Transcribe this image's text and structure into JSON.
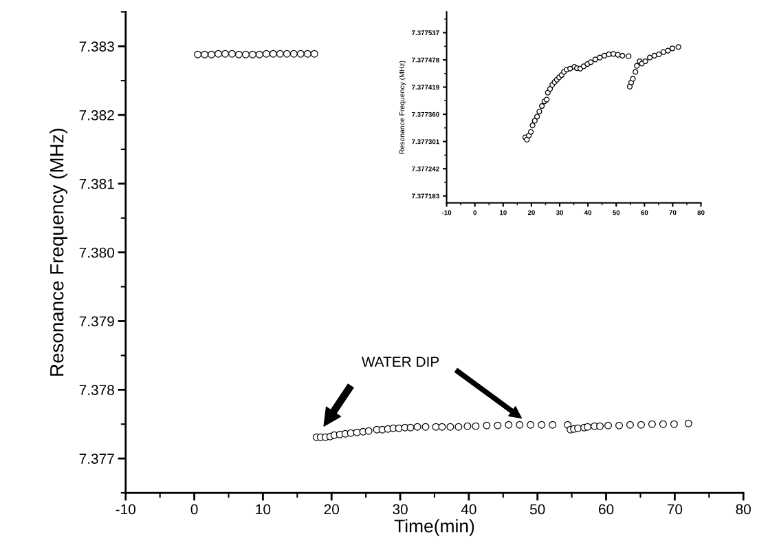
{
  "chart_data": [
    {
      "type": "scatter",
      "xlabel": "Time(min)",
      "ylabel": "Resonance Frequency (MHz)",
      "marker": "circle",
      "grid": false,
      "xlim": [
        -10,
        80
      ],
      "xticks": [
        -10,
        0,
        10,
        20,
        30,
        40,
        50,
        60,
        70,
        80
      ],
      "ylim": [
        7.3765,
        7.3835
      ],
      "yticks": [
        7.377,
        7.378,
        7.379,
        {
          "value": 7.38,
          "label": "7.380"
        },
        7.381,
        7.382,
        7.383
      ],
      "annotations": [
        "WATER DIP"
      ],
      "series": [
        {
          "color": "#000000",
          "x": [
            0.5,
            1.5,
            2.5,
            3.5,
            4.5,
            5.5,
            6.5,
            7.5,
            8.5,
            9.5,
            10.5,
            11.5,
            12.5,
            13.5,
            14.5,
            15.5,
            16.5,
            17.5
          ],
          "values": [
            7.38288,
            7.38288,
            7.38288,
            7.38289,
            7.38289,
            7.38289,
            7.38288,
            7.38288,
            7.38288,
            7.38288,
            7.38289,
            7.38289,
            7.38289,
            7.38289,
            7.38289,
            7.38289,
            7.38289,
            7.38289
          ]
        },
        {
          "color": "#000000",
          "x": [
            17.8,
            18.4,
            19.1,
            19.8,
            20.4,
            21.2,
            22.0,
            22.8,
            23.7,
            24.6,
            25.4,
            26.6,
            27.4,
            28.2,
            29.0,
            29.8,
            30.7,
            31.5,
            32.5,
            33.7,
            35.2,
            36.1,
            37.3,
            38.5,
            39.8,
            41.0,
            42.6,
            44.2,
            45.8,
            47.4,
            49.0,
            50.6,
            52.2,
            54.4
          ],
          "values": [
            7.37731,
            7.37731,
            7.37731,
            7.37732,
            7.37734,
            7.37735,
            7.37736,
            7.37737,
            7.37738,
            7.37739,
            7.3774,
            7.37742,
            7.37742,
            7.37743,
            7.37744,
            7.37744,
            7.37745,
            7.37745,
            7.37746,
            7.37746,
            7.37746,
            7.37746,
            7.37746,
            7.37746,
            7.37747,
            7.37747,
            7.37748,
            7.37748,
            7.37749,
            7.37749,
            7.37749,
            7.37749,
            7.37749,
            7.37749
          ]
        },
        {
          "color": "#000000",
          "x": [
            54.8,
            55.3,
            55.9,
            56.8,
            57.3,
            58.3,
            59.1,
            60.3,
            61.9,
            63.5,
            65.1,
            66.7,
            68.3,
            69.9,
            72.0
          ],
          "values": [
            7.37742,
            7.37743,
            7.37744,
            7.37745,
            7.37746,
            7.37747,
            7.37747,
            7.37748,
            7.37748,
            7.37749,
            7.37749,
            7.3775,
            7.3775,
            7.3775,
            7.37751
          ]
        }
      ]
    },
    {
      "type": "scatter",
      "ylabel": "Resonance Frequency (MHz)",
      "marker": "circle",
      "grid": false,
      "xlim": [
        -10,
        80
      ],
      "xticks": [
        -10,
        0,
        10,
        20,
        30,
        40,
        50,
        60,
        70,
        80
      ],
      "ylim": [
        7.377168,
        7.377582
      ],
      "yticks": [
        7.377183,
        7.377242,
        7.377301,
        {
          "value": 7.37736,
          "label": "7.377360"
        },
        7.377419,
        7.377478,
        7.377537
      ],
      "series": [
        {
          "color": "#000000",
          "x": [
            17.8,
            18.4,
            19.1,
            19.8,
            20.4,
            21.2,
            22.0,
            22.8,
            23.7,
            24.6,
            25.4,
            25.8,
            26.6,
            27.4,
            28.2,
            29.0,
            29.8,
            30.7,
            31.5,
            32.5,
            33.7,
            35.2,
            36.1,
            37.3,
            38.5,
            39.8,
            41.0,
            42.6,
            44.2,
            45.8,
            47.4,
            49.0,
            50.6,
            52.2,
            54.4
          ],
          "values": [
            7.37731,
            7.377305,
            7.377314,
            7.377322,
            7.377336,
            7.377346,
            7.377355,
            7.377366,
            7.377378,
            7.377388,
            7.377392,
            7.377407,
            7.377415,
            7.377424,
            7.37743,
            7.377435,
            7.37744,
            7.377445,
            7.377452,
            7.377457,
            7.377459,
            7.377463,
            7.37746,
            7.377459,
            7.377464,
            7.377469,
            7.377473,
            7.377479,
            7.377483,
            7.377487,
            7.37749,
            7.377491,
            7.377489,
            7.377487,
            7.377486
          ]
        },
        {
          "color": "#000000",
          "x": [
            54.8,
            55.3,
            55.9,
            56.8,
            57.3,
            58.3,
            59.1,
            60.3,
            61.9,
            63.5,
            65.1,
            66.7,
            68.3,
            69.9,
            72.0
          ],
          "values": [
            7.37742,
            7.377429,
            7.377437,
            7.377452,
            7.377465,
            7.377475,
            7.37747,
            7.377475,
            7.377483,
            7.377487,
            7.37749,
            7.377495,
            7.377498,
            7.377503,
            7.377506
          ]
        }
      ]
    }
  ]
}
